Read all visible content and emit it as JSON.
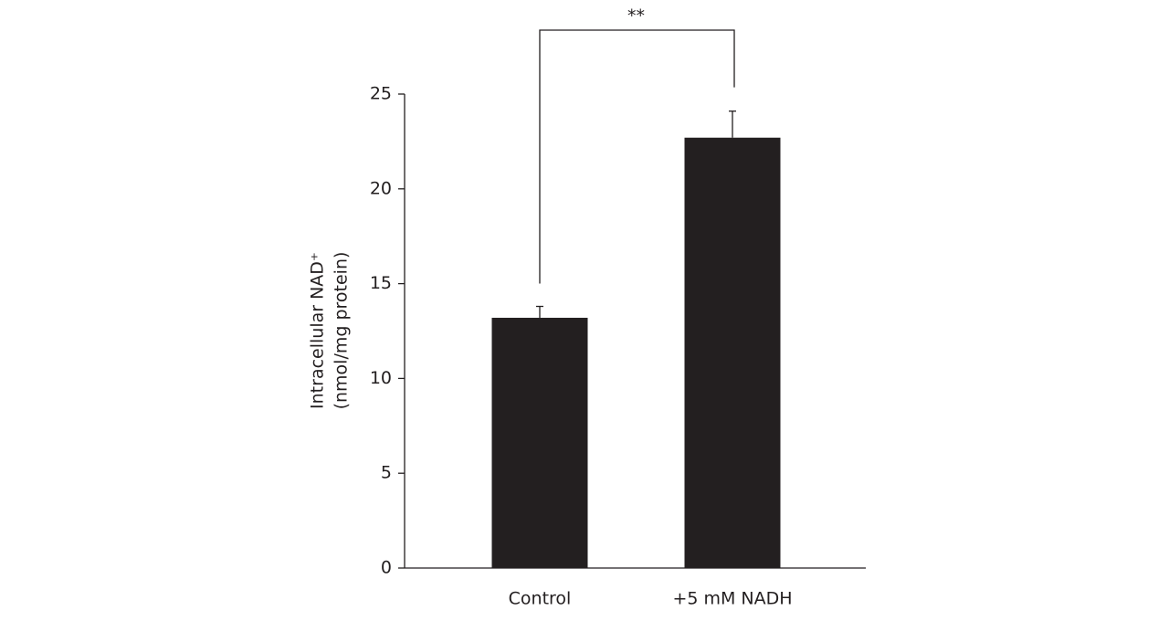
{
  "chart_data": {
    "type": "bar",
    "ylabel": [
      "Intracellular NAD⁺",
      "(nmol/mg protein)"
    ],
    "categories": [
      "Control",
      "+5 mM NADH"
    ],
    "values": [
      13.2,
      22.7
    ],
    "errors": [
      0.6,
      1.4
    ],
    "color": "#231f20",
    "ylim": [
      0,
      25
    ],
    "yticks": [
      0,
      5,
      10,
      15,
      20,
      25
    ],
    "annotation": "**"
  }
}
